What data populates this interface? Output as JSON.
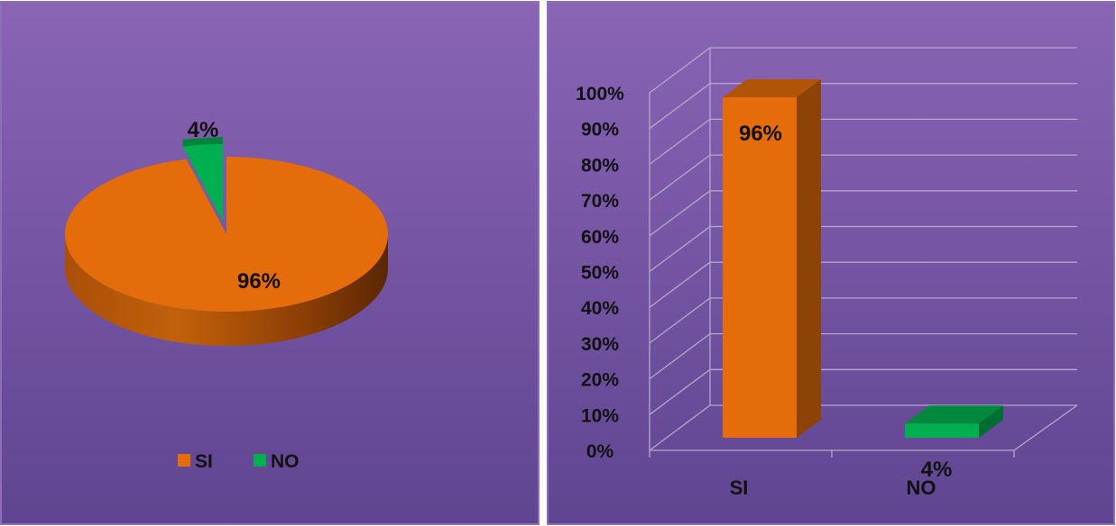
{
  "chart_data": [
    {
      "type": "pie",
      "categories": [
        "SI",
        "NO"
      ],
      "values": [
        96,
        4
      ],
      "data_labels": [
        "96%",
        "4%"
      ],
      "legend": {
        "position": "bottom",
        "entries": [
          "SI",
          "NO"
        ]
      },
      "colors": [
        "#E46C0A",
        "#00B050"
      ],
      "style": "3d"
    },
    {
      "type": "bar",
      "categories": [
        "SI",
        "NO"
      ],
      "values": [
        96,
        4
      ],
      "data_labels": [
        "96%",
        "4%"
      ],
      "ylim": [
        0,
        100
      ],
      "yticks": [
        "0%",
        "10%",
        "20%",
        "30%",
        "40%",
        "50%",
        "60%",
        "70%",
        "80%",
        "90%",
        "100%"
      ],
      "grid": true,
      "colors": [
        "#E46C0A",
        "#00B050"
      ],
      "style": "3d"
    }
  ],
  "colors": {
    "panel_top": "#8A64B5",
    "panel_bottom": "#5F4591",
    "panel_border": "#8C6FB8",
    "gridline": "#B3A8C9",
    "si": "#E46C0A",
    "no": "#00B050"
  }
}
